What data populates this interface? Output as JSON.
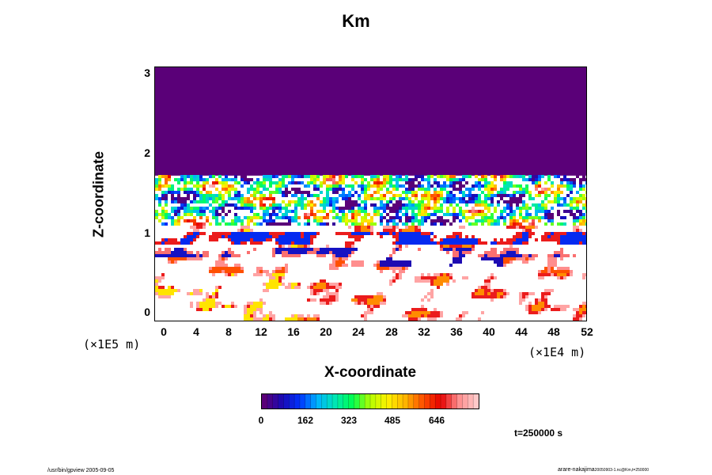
{
  "chart_data": {
    "type": "heatmap",
    "title": "Km",
    "xlabel": "X-coordinate",
    "ylabel": "Z-coordinate",
    "x_scale_note": "(×1E4 m)",
    "y_scale_note": "(×1E5 m)",
    "xlim": [
      -1,
      52
    ],
    "ylim": [
      -0.08,
      3.08
    ],
    "x_ticks": [
      "0",
      "4",
      "8",
      "12",
      "16",
      "20",
      "24",
      "28",
      "32",
      "36",
      "40",
      "44",
      "48",
      "52"
    ],
    "y_ticks": [
      "0",
      "1",
      "2",
      "3"
    ],
    "colorbar": {
      "ticks": [
        "0",
        "162",
        "323",
        "485",
        "646"
      ],
      "colors": [
        "#5a0078",
        "#1a0ab4",
        "#0032ff",
        "#00b4ff",
        "#00e6b4",
        "#00ff50",
        "#b4ff00",
        "#fff000",
        "#ffb400",
        "#ff5000",
        "#e60000",
        "#ff8c8c",
        "#ffc8c8"
      ]
    },
    "time_label": "t=250000 s",
    "footer_left": "/usr/bin/gpview 2005-09-05",
    "footer_right": "arare-nakajima",
    "footer_right_sub": "20050903-1.nc@Km,t=250000"
  }
}
